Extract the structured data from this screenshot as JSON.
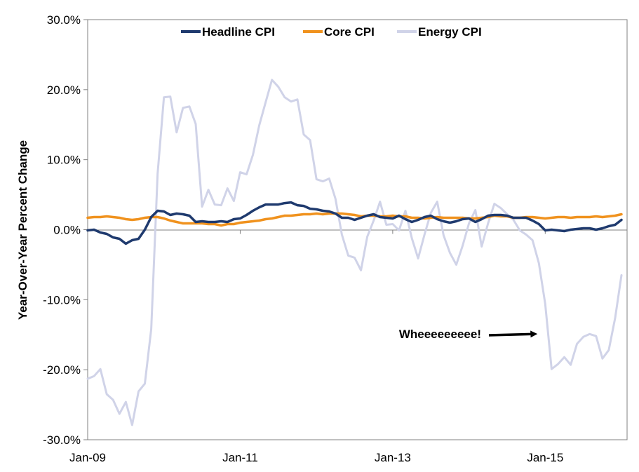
{
  "chart_data": {
    "type": "line",
    "ylabel": "Year-Over-Year Percent Change",
    "xlabel": "",
    "ylim": [
      -30,
      30
    ],
    "yticks": [
      {
        "value": 30,
        "label": "30.0%"
      },
      {
        "value": 20,
        "label": "20.0%"
      },
      {
        "value": 10,
        "label": "10.0%"
      },
      {
        "value": 0,
        "label": "0.0%"
      },
      {
        "value": -10,
        "label": "-10.0%"
      },
      {
        "value": -20,
        "label": "-20.0%"
      },
      {
        "value": -30,
        "label": "-30.0%"
      }
    ],
    "xticks": [
      {
        "month": 0,
        "label": "Jan-09"
      },
      {
        "month": 24,
        "label": "Jan-11"
      },
      {
        "month": 48,
        "label": "Jan-13"
      },
      {
        "month": 72,
        "label": "Jan-15"
      }
    ],
    "x_start": "Jan-09",
    "grid": false,
    "legend": "top",
    "annotation": {
      "text": "Wheeeeeeeee!",
      "month": 71,
      "value": -14.5
    },
    "series": [
      {
        "name": "Headline CPI",
        "color": "#1f3a6e",
        "values": [
          -0.1,
          0.0,
          -0.4,
          -0.6,
          -1.1,
          -1.3,
          -2.0,
          -1.5,
          -1.3,
          0.0,
          1.8,
          2.7,
          2.6,
          2.1,
          2.3,
          2.2,
          2.0,
          1.1,
          1.2,
          1.1,
          1.1,
          1.2,
          1.1,
          1.5,
          1.6,
          2.1,
          2.7,
          3.2,
          3.6,
          3.6,
          3.6,
          3.8,
          3.9,
          3.5,
          3.4,
          3.0,
          2.9,
          2.7,
          2.6,
          2.3,
          1.7,
          1.7,
          1.4,
          1.7,
          2.0,
          2.2,
          1.8,
          1.7,
          1.6,
          2.0,
          1.5,
          1.1,
          1.4,
          1.8,
          2.0,
          1.5,
          1.2,
          1.0,
          1.2,
          1.5,
          1.6,
          1.1,
          1.5,
          2.0,
          2.1,
          2.1,
          2.0,
          1.7,
          1.7,
          1.7,
          1.3,
          0.8,
          -0.1,
          0.0,
          -0.1,
          -0.2,
          0.0,
          0.1,
          0.2,
          0.2,
          0.0,
          0.2,
          0.5,
          0.7,
          1.4
        ]
      },
      {
        "name": "Core CPI",
        "color": "#f0921e",
        "values": [
          1.7,
          1.8,
          1.8,
          1.9,
          1.8,
          1.7,
          1.5,
          1.4,
          1.5,
          1.7,
          1.8,
          1.8,
          1.6,
          1.3,
          1.1,
          0.9,
          0.9,
          0.9,
          0.9,
          0.8,
          0.8,
          0.6,
          0.8,
          0.8,
          1.0,
          1.1,
          1.2,
          1.3,
          1.5,
          1.6,
          1.8,
          2.0,
          2.0,
          2.1,
          2.2,
          2.2,
          2.3,
          2.2,
          2.3,
          2.3,
          2.3,
          2.2,
          2.1,
          1.9,
          2.0,
          2.0,
          1.9,
          1.9,
          2.0,
          1.9,
          1.9,
          1.7,
          1.7,
          1.6,
          1.7,
          1.8,
          1.7,
          1.7,
          1.7,
          1.7,
          1.6,
          1.6,
          1.7,
          1.8,
          2.0,
          1.9,
          1.9,
          1.7,
          1.7,
          1.8,
          1.8,
          1.7,
          1.6,
          1.7,
          1.8,
          1.8,
          1.7,
          1.8,
          1.8,
          1.8,
          1.9,
          1.8,
          1.9,
          2.0,
          2.2
        ]
      },
      {
        "name": "Energy CPI",
        "color": "#d0d3e8",
        "values": [
          -21.3,
          -20.9,
          -19.9,
          -23.5,
          -24.3,
          -26.3,
          -24.6,
          -27.9,
          -23.1,
          -22.0,
          -14.2,
          8.0,
          18.9,
          19.0,
          13.9,
          17.4,
          17.6,
          15.1,
          3.3,
          5.7,
          3.6,
          3.5,
          5.9,
          4.1,
          8.2,
          7.9,
          10.7,
          14.9,
          18.2,
          21.4,
          20.4,
          18.9,
          18.3,
          18.6,
          13.6,
          12.8,
          7.2,
          6.9,
          7.3,
          4.4,
          -0.7,
          -3.7,
          -4.0,
          -5.8,
          -1.0,
          1.3,
          4.0,
          0.7,
          0.8,
          -0.1,
          2.7,
          -1.2,
          -4.1,
          -0.7,
          2.4,
          4.0,
          -0.8,
          -3.3,
          -5.0,
          -2.3,
          0.9,
          2.8,
          -2.4,
          0.9,
          3.7,
          3.1,
          2.2,
          1.4,
          -0.1,
          -0.7,
          -1.5,
          -4.8,
          -10.6,
          -19.9,
          -19.2,
          -18.2,
          -19.3,
          -16.3,
          -15.3,
          -14.9,
          -15.2,
          -18.4,
          -17.2,
          -12.6,
          -6.5
        ]
      }
    ]
  }
}
